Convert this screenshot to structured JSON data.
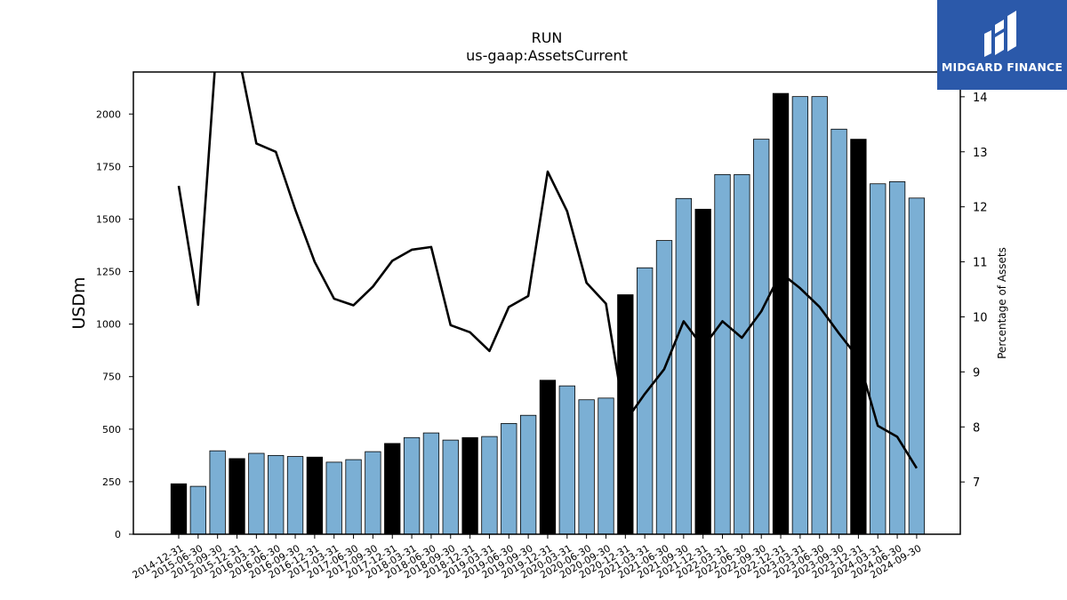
{
  "chart_data": {
    "type": "bar",
    "title": "RUN",
    "subtitle": "us-gaap:AssetsCurrent",
    "ylabel": "USDm",
    "y2label": "Percentage of Assets",
    "ylim": [
      0,
      2200
    ],
    "y2lim": [
      6.05,
      14.45
    ],
    "yticks": [
      0,
      250,
      500,
      750,
      1000,
      1250,
      1500,
      1750,
      2000
    ],
    "y2ticks": [
      7,
      8,
      9,
      10,
      11,
      12,
      13,
      14
    ],
    "colors": {
      "bar_annual": "#000000",
      "bar_quarter": "#7bafd4",
      "line": "#000000"
    },
    "categories": [
      "2014-12-31",
      "2015-06-30",
      "2015-09-30",
      "2015-12-31",
      "2016-03-31",
      "2016-06-30",
      "2016-09-30",
      "2016-12-31",
      "2017-03-31",
      "2017-06-30",
      "2017-09-30",
      "2017-12-31",
      "2018-03-31",
      "2018-06-30",
      "2018-09-30",
      "2018-12-31",
      "2019-03-31",
      "2019-06-30",
      "2019-09-30",
      "2019-12-31",
      "2020-03-31",
      "2020-06-30",
      "2020-09-30",
      "2020-12-31",
      "2021-03-31",
      "2021-06-30",
      "2021-09-30",
      "2021-12-31",
      "2022-03-31",
      "2022-06-30",
      "2022-09-30",
      "2022-12-31",
      "2023-03-31",
      "2023-06-30",
      "2023-09-30",
      "2023-12-31",
      "2024-03-31",
      "2024-06-30",
      "2024-09-30"
    ],
    "series": [
      {
        "type": "bar",
        "values": [
          240,
          228,
          397,
          360,
          385,
          375,
          370,
          367,
          343,
          355,
          393,
          432,
          460,
          482,
          448,
          460,
          465,
          527,
          566,
          733,
          706,
          640,
          648,
          1140,
          1268,
          1398,
          1598,
          1547,
          1712,
          1712,
          1880,
          2098,
          2083,
          2083,
          1928,
          1880,
          1668,
          1678,
          1600
        ],
        "annual": [
          true,
          false,
          false,
          true,
          false,
          false,
          false,
          true,
          false,
          false,
          false,
          true,
          false,
          false,
          false,
          true,
          false,
          false,
          false,
          true,
          false,
          false,
          false,
          true,
          false,
          false,
          false,
          true,
          false,
          false,
          false,
          true,
          false,
          false,
          false,
          true,
          false,
          false,
          false
        ]
      },
      {
        "type": "line",
        "axis": "right",
        "values": [
          12.38,
          10.22,
          15.2,
          14.9,
          13.15,
          13.0,
          11.95,
          11.0,
          10.33,
          10.21,
          10.55,
          11.02,
          11.22,
          11.27,
          9.85,
          9.72,
          9.38,
          10.18,
          10.38,
          12.64,
          11.92,
          10.62,
          10.24,
          8.1,
          8.6,
          9.05,
          9.92,
          9.45,
          9.92,
          9.62,
          10.1,
          10.8,
          10.52,
          10.18,
          9.7,
          9.25,
          8.02,
          7.82,
          7.25
        ]
      }
    ]
  },
  "logo": {
    "text": "MIDGARD FINANCE"
  }
}
